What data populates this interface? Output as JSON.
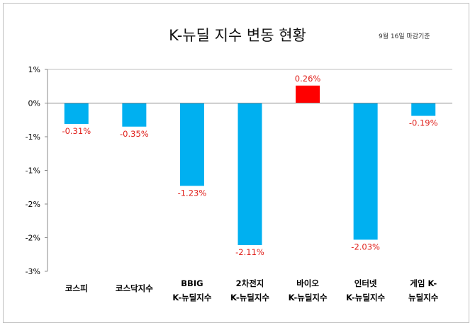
{
  "chart_data": {
    "type": "bar",
    "title": "K-뉴딜 지수 변동 현황",
    "subtitle": "9월 16일 마감기준",
    "categories": [
      [
        "코스피"
      ],
      [
        "코스닥지수"
      ],
      [
        "BBIG",
        "K-뉴딜지수"
      ],
      [
        "2차전지",
        "K-뉴딜지수"
      ],
      [
        "바이오",
        "K-뉴딜지수"
      ],
      [
        "인터넷",
        "K-뉴딜지수"
      ],
      [
        "게임 K-",
        "뉴딜지수"
      ]
    ],
    "values": [
      -0.31,
      -0.35,
      -1.23,
      -2.11,
      0.26,
      -2.03,
      -0.19
    ],
    "data_labels": [
      "-0.31%",
      "-0.35%",
      "-1.23%",
      "-2.11%",
      "0.26%",
      "-2.03%",
      "-0.19%"
    ],
    "ylim": [
      -2.5,
      0.5
    ],
    "yticks": [
      0.5,
      0,
      -0.5,
      -1,
      -1.5,
      -2,
      -2.5
    ],
    "ytick_labels": [
      "1%",
      "0%",
      "-1%",
      "-1%",
      "-2%",
      "-2%",
      "-3%"
    ],
    "xlabel": "",
    "ylabel": "",
    "colors": {
      "negative": "#00b0f0",
      "positive": "#ff0000",
      "label": "#e0201b"
    },
    "grid": false
  }
}
